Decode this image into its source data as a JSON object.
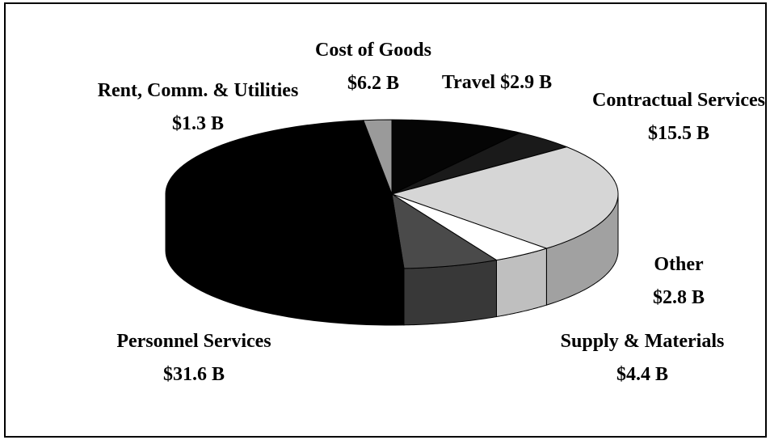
{
  "chart_data": {
    "type": "pie3d",
    "categories": [
      "Cost of Goods",
      "Travel",
      "Contractual Services",
      "Other",
      "Supply & Materials",
      "Personnel Services",
      "Rent, Comm. & Utilities"
    ],
    "values": [
      6.2,
      2.9,
      15.5,
      2.8,
      4.4,
      31.6,
      1.3
    ],
    "value_labels": [
      "$6.2 B",
      "$2.9 B",
      "$15.5 B",
      "$2.8 B",
      "$4.4 B",
      "$31.6 B",
      "$1.3 B"
    ],
    "colors": [
      "#050505",
      "#1a1a1a",
      "#d6d6d6",
      "#ffffff",
      "#4a4a4a",
      "#000000",
      "#9a9a9a"
    ]
  }
}
